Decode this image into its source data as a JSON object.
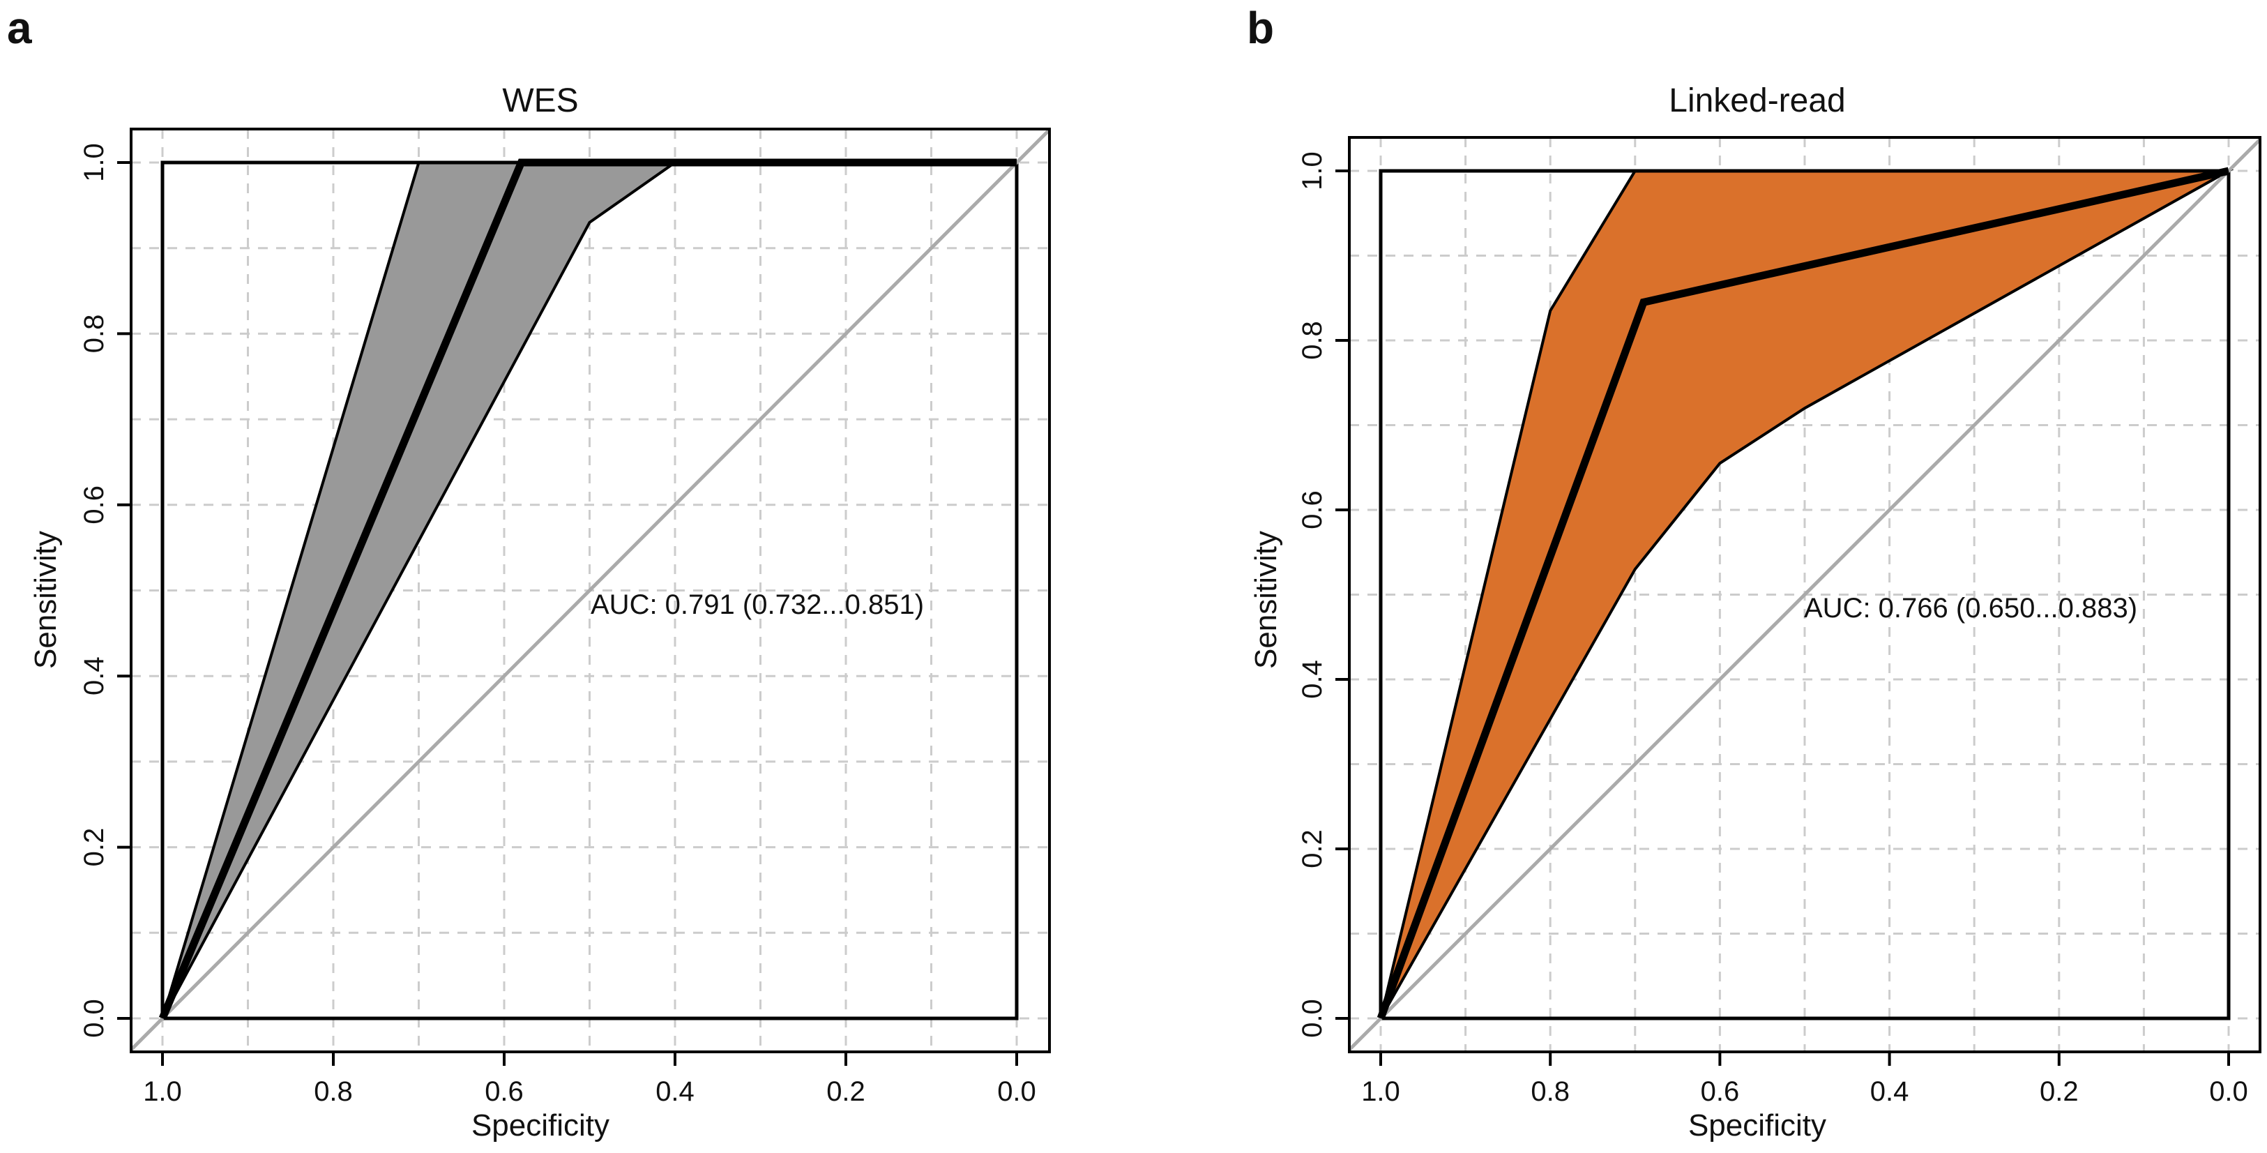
{
  "chart_data": [
    {
      "type": "line",
      "panel_label": "a",
      "title": "WES",
      "xlabel": "Specificity",
      "ylabel": "Sensitivity",
      "xlim": [
        1.0,
        0.0
      ],
      "ylim": [
        0.0,
        1.0
      ],
      "x_reversed": true,
      "grid": true,
      "x_ticks": [
        "1.0",
        "0.8",
        "0.6",
        "0.4",
        "0.2",
        "0.0"
      ],
      "y_ticks": [
        "0.0",
        "0.2",
        "0.4",
        "0.6",
        "0.8",
        "1.0"
      ],
      "annotation": "AUC: 0.791 (0.732...0.851)",
      "band_color": "#999999",
      "roc_curve": {
        "x": [
          1.0,
          0.58,
          0.0
        ],
        "y": [
          0.0,
          1.0,
          1.0
        ]
      },
      "ci_band": {
        "upper": {
          "x": [
            1.0,
            0.7,
            0.0
          ],
          "y": [
            0.0,
            1.0,
            1.0
          ]
        },
        "lower": {
          "x": [
            1.0,
            0.5,
            0.4,
            0.0
          ],
          "y": [
            0.0,
            0.93,
            1.0,
            1.0
          ]
        }
      }
    },
    {
      "type": "line",
      "panel_label": "b",
      "title": "Linked-read",
      "xlabel": "Specificity",
      "ylabel": "Sensitivity",
      "xlim": [
        1.0,
        0.0
      ],
      "ylim": [
        0.0,
        1.0
      ],
      "x_reversed": true,
      "grid": true,
      "x_ticks": [
        "1.0",
        "0.8",
        "0.6",
        "0.4",
        "0.2",
        "0.0"
      ],
      "y_ticks": [
        "0.0",
        "0.2",
        "0.4",
        "0.6",
        "0.8",
        "1.0"
      ],
      "annotation": "AUC: 0.766 (0.650...0.883)",
      "band_color": "#DA712B",
      "roc_curve": {
        "x": [
          1.0,
          0.69,
          0.0
        ],
        "y": [
          0.0,
          0.845,
          1.0
        ]
      },
      "ci_band": {
        "upper": {
          "x": [
            1.0,
            0.8,
            0.7,
            0.0
          ],
          "y": [
            0.0,
            0.835,
            1.0,
            1.0
          ]
        },
        "lower": {
          "x": [
            1.0,
            0.7,
            0.6,
            0.5,
            0.0
          ],
          "y": [
            0.0,
            0.53,
            0.655,
            0.72,
            1.0
          ]
        }
      }
    }
  ]
}
